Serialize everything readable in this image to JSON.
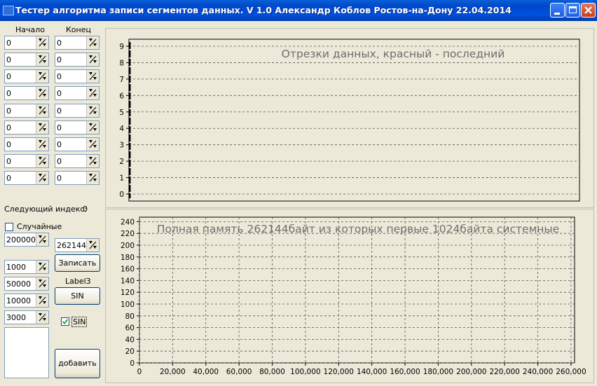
{
  "window": {
    "title": "Тестер алгоритма записи сегментов данных. V 1.0 Александр Коблов Ростов-на-Дону 22.04.2014"
  },
  "segments": {
    "start_header": "Начало",
    "end_header": "Конец",
    "starts": [
      "0",
      "0",
      "0",
      "0",
      "0",
      "0",
      "0",
      "0",
      "0"
    ],
    "ends": [
      "0",
      "0",
      "0",
      "0",
      "0",
      "0",
      "0",
      "0",
      "0"
    ]
  },
  "next_index": {
    "label": "Следующий индекс:",
    "value": "0"
  },
  "random": {
    "label": "Случайные",
    "checked": false,
    "value": "200000"
  },
  "memory": {
    "value": "262144"
  },
  "write_button": "Записать",
  "params": [
    "1000",
    "50000",
    "10000",
    "3000"
  ],
  "label3": "Label3",
  "sin_button": "SIN",
  "sin_checkbox": {
    "label": "SIN",
    "checked": true
  },
  "add_button": "добавить",
  "chart_data": [
    {
      "type": "bar",
      "title": "Отрезки данных, красный - последний",
      "ylim": [
        0,
        9
      ],
      "yticks": [
        "0",
        "1",
        "2",
        "3",
        "4",
        "5",
        "6",
        "7",
        "8",
        "9"
      ],
      "grid": true,
      "series": []
    },
    {
      "type": "bar",
      "title": "Полная память 262144байт из которых первые 1024байта системные",
      "ylim": [
        0,
        250
      ],
      "yticks": [
        "0",
        "20",
        "40",
        "60",
        "80",
        "100",
        "120",
        "140",
        "160",
        "180",
        "200",
        "220",
        "240"
      ],
      "xlim": [
        0,
        262144
      ],
      "xticks": [
        "0",
        "20,000",
        "40,000",
        "60,000",
        "80,000",
        "100,000",
        "120,000",
        "140,000",
        "160,000",
        "180,000",
        "200,000",
        "220,000",
        "240,000",
        "260,000"
      ],
      "grid": true,
      "series": []
    }
  ]
}
